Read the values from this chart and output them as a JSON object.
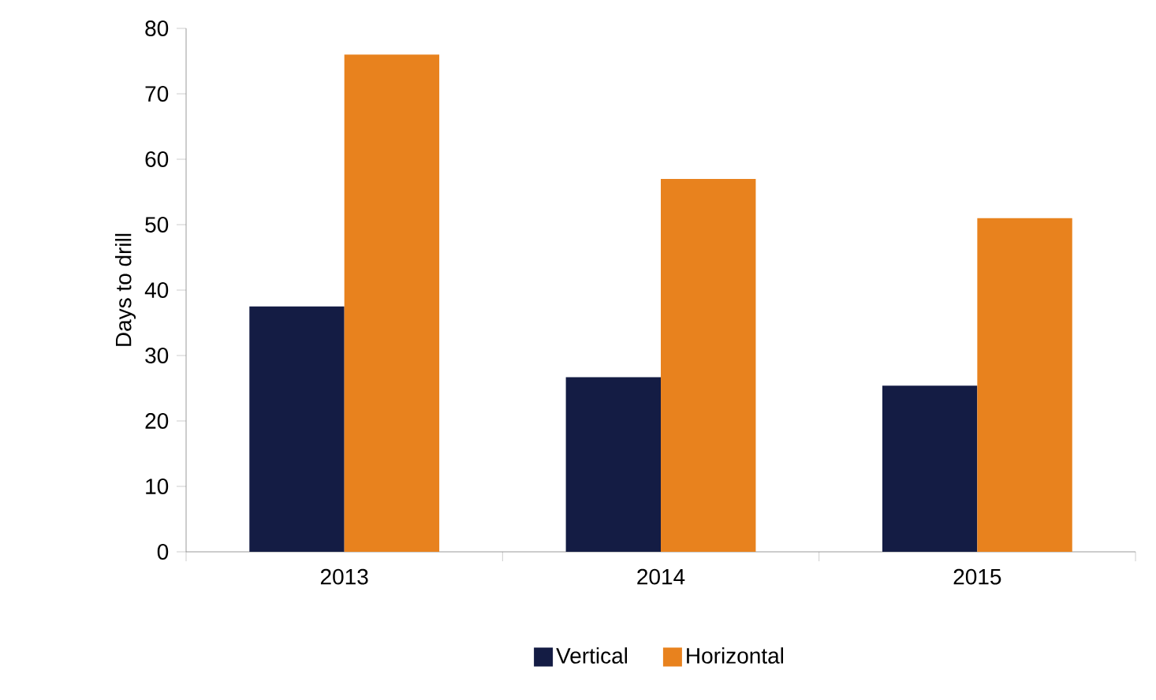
{
  "chart_data": {
    "type": "bar",
    "ylabel": "Days to drill",
    "categories": [
      "2013",
      "2014",
      "2015"
    ],
    "series": [
      {
        "name": "Vertical",
        "color": "#141c44",
        "values": [
          37.5,
          26.7,
          25.4
        ]
      },
      {
        "name": "Horizontal",
        "color": "#e8821e",
        "values": [
          76,
          57,
          51
        ]
      }
    ],
    "ylim": [
      0,
      80
    ],
    "yticks": [
      0,
      10,
      20,
      30,
      40,
      50,
      60,
      70,
      80
    ],
    "legend": "bottom"
  }
}
